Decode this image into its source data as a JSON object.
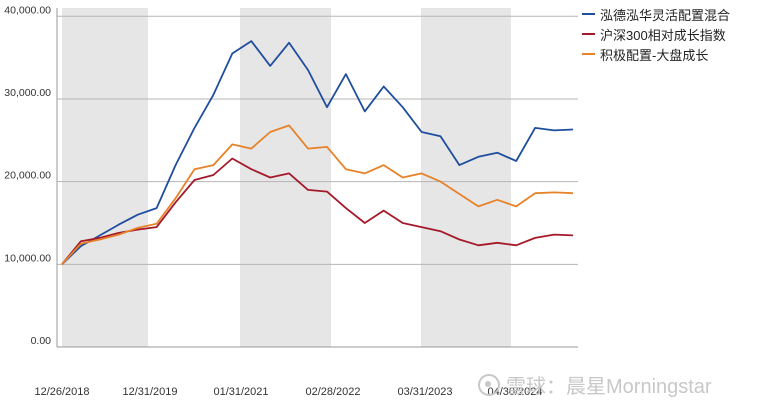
{
  "chart_data": {
    "type": "line",
    "x": [
      "12/26/2018",
      "03/2019",
      "06/2019",
      "09/2019",
      "12/31/2019",
      "03/2020",
      "06/2020",
      "09/2020",
      "12/2020",
      "01/31/2021",
      "04/2021",
      "07/2021",
      "10/2021",
      "01/2022",
      "02/28/2022",
      "05/2022",
      "08/2022",
      "11/2022",
      "02/2023",
      "03/31/2023",
      "06/2023",
      "09/2023",
      "12/2023",
      "03/2024",
      "04/30/2024",
      "07/2024",
      "10/2024",
      "12/2024"
    ],
    "x_tick_labels": [
      "12/26/2018",
      "12/31/2019",
      "01/31/2021",
      "02/28/2022",
      "03/31/2023",
      "04/30/2024"
    ],
    "y_tick_labels": [
      "0.00",
      "10,000.00",
      "20,000.00",
      "30,000.00",
      "40,000.00"
    ],
    "ylim": [
      0,
      41000
    ],
    "shaded_years": [
      [
        "2019-01",
        "2019-12"
      ],
      [
        "2021-01",
        "2021-12"
      ],
      [
        "2023-01",
        "2023-12"
      ]
    ],
    "series": [
      {
        "name": "泓德泓华灵活配置混合",
        "color": "#1f4e9e",
        "values": [
          10000,
          12200,
          13500,
          14800,
          16000,
          16800,
          22000,
          26500,
          30500,
          35500,
          37000,
          34000,
          36800,
          33500,
          29000,
          33000,
          28500,
          31500,
          29000,
          26000,
          25500,
          22000,
          23000,
          23500,
          22500,
          26500,
          26200,
          26300
        ]
      },
      {
        "name": "沪深300相对成长指数",
        "color": "#a51a2a",
        "values": [
          10000,
          12800,
          13200,
          13800,
          14200,
          14500,
          17500,
          20200,
          20800,
          22800,
          21500,
          20500,
          21000,
          19000,
          18800,
          16800,
          15000,
          16500,
          15000,
          14500,
          14000,
          13000,
          12300,
          12600,
          12300,
          13200,
          13600,
          13500
        ]
      },
      {
        "name": "积极配置-大盘成长",
        "color": "#e8822a",
        "values": [
          10000,
          12500,
          13000,
          13600,
          14400,
          14900,
          18000,
          21500,
          22000,
          24500,
          24000,
          26000,
          26800,
          24000,
          24200,
          21500,
          21000,
          22000,
          20500,
          21000,
          20000,
          18500,
          17000,
          17800,
          17000,
          18600,
          18700,
          18600
        ]
      }
    ]
  },
  "watermark": {
    "text": "雪球：晨星Morningstar"
  }
}
